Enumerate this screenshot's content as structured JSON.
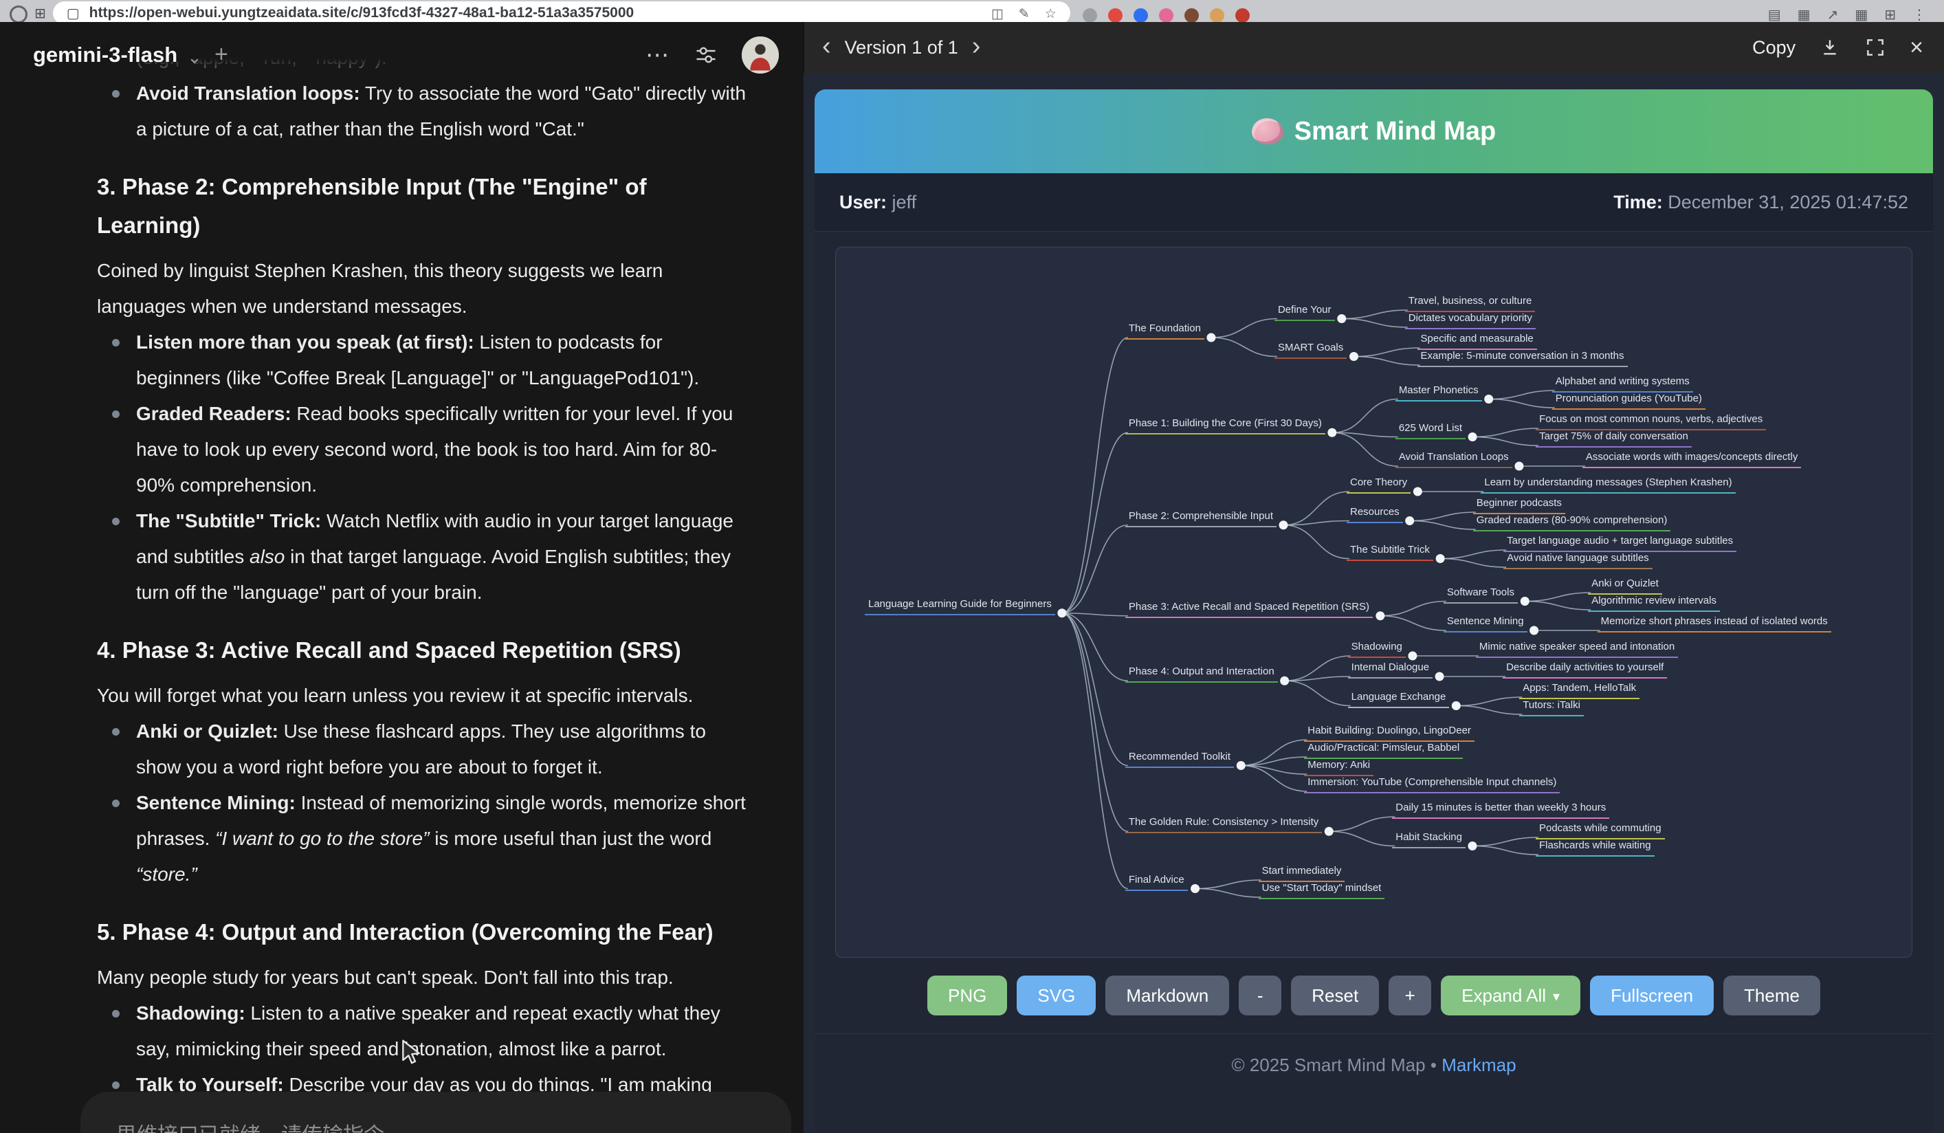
{
  "browser": {
    "url": "https://open-webui.yungtzeaidata.site/c/913fcd3f-4327-48a1-ba12-51a3a3575000",
    "pill_icons": [
      {
        "name": "reader-view-icon",
        "glyph": "◫"
      },
      {
        "name": "highlight-icon",
        "glyph": "✎"
      },
      {
        "name": "bookmark-star-icon",
        "glyph": "☆"
      }
    ],
    "extension_dots": [
      "#9aa0a6",
      "#e04a3f",
      "#2d6ff0",
      "#e2699a",
      "#7c4a32",
      "#d9a05b",
      "#c23b2e"
    ],
    "tray_icons": [
      {
        "name": "notifications-icon",
        "glyph": "▤"
      },
      {
        "name": "tab-overview-icon",
        "glyph": "▦"
      },
      {
        "name": "share-icon",
        "glyph": "↗"
      },
      {
        "name": "apps-grid-icon",
        "glyph": "▦"
      },
      {
        "name": "extensions-icon",
        "glyph": "⊞"
      },
      {
        "name": "more-menu-icon",
        "glyph": "⋮"
      }
    ]
  },
  "icons": {
    "model_chevron": "⌄",
    "new_chat": "+",
    "menu_dots": "⋯",
    "chevron_left": "‹",
    "chevron_right": "›",
    "close": "×",
    "caret_down": "▾",
    "footer_sep": "•"
  },
  "chat": {
    "model": "gemini-3-flash",
    "partial_line": "(e.g., \"apple,\" \"run,\" \"happy\").",
    "input_placeholder": "思维接口已就绪，请传输指令。",
    "blocks": [
      {
        "type": "bullet",
        "segments": [
          {
            "t": "Avoid Translation loops:",
            "b": true
          },
          {
            "t": " Try to associate the word \"Gato\" directly with a picture of a cat, rather than the English word \"Cat.\""
          }
        ]
      },
      {
        "type": "h3",
        "segments": [
          {
            "t": "3. Phase 2: Comprehensible Input (The \"Engine\" of Learning)"
          }
        ]
      },
      {
        "type": "p",
        "segments": [
          {
            "t": "Coined by linguist Stephen Krashen, this theory suggests we learn languages when we understand messages."
          }
        ]
      },
      {
        "type": "bullet",
        "segments": [
          {
            "t": "Listen more than you speak (at first):",
            "b": true
          },
          {
            "t": " Listen to podcasts for beginners (like \"Coffee Break [Language]\" or \"LanguagePod101\")."
          }
        ]
      },
      {
        "type": "bullet",
        "segments": [
          {
            "t": "Graded Readers:",
            "b": true
          },
          {
            "t": " Read books specifically written for your level. If you have to look up every second word, the book is too hard. Aim for 80-90% comprehension."
          }
        ]
      },
      {
        "type": "bullet",
        "segments": [
          {
            "t": "The \"Subtitle\" Trick:",
            "b": true
          },
          {
            "t": " Watch Netflix with audio in your target language and subtitles "
          },
          {
            "t": "also",
            "i": true
          },
          {
            "t": " in that target language. Avoid English subtitles; they turn off the \"language\" part of your brain."
          }
        ]
      },
      {
        "type": "h3",
        "segments": [
          {
            "t": "4. Phase 3: Active Recall and Spaced Repetition (SRS)"
          }
        ]
      },
      {
        "type": "p",
        "segments": [
          {
            "t": "You will forget what you learn unless you review it at specific intervals."
          }
        ]
      },
      {
        "type": "bullet",
        "segments": [
          {
            "t": "Anki or Quizlet:",
            "b": true
          },
          {
            "t": " Use these flashcard apps. They use algorithms to show you a word right before you are about to forget it."
          }
        ]
      },
      {
        "type": "bullet",
        "segments": [
          {
            "t": "Sentence Mining:",
            "b": true
          },
          {
            "t": " Instead of memorizing single words, memorize short phrases. "
          },
          {
            "t": "“I want to go to the store”",
            "i": true
          },
          {
            "t": " is more useful than just the word "
          },
          {
            "t": "“store.”",
            "i": true
          }
        ]
      },
      {
        "type": "h3",
        "segments": [
          {
            "t": "5. Phase 4: Output and Interaction (Overcoming the Fear)"
          }
        ]
      },
      {
        "type": "p",
        "segments": [
          {
            "t": "Many people study for years but can't speak. Don't fall into this trap."
          }
        ]
      },
      {
        "type": "bullet",
        "segments": [
          {
            "t": "Shadowing:",
            "b": true
          },
          {
            "t": " Listen to a native speaker and repeat exactly what they say, mimicking their speed and intonation, almost like a parrot."
          }
        ]
      },
      {
        "type": "bullet",
        "segments": [
          {
            "t": "Talk to Yourself:",
            "b": true
          },
          {
            "t": " Describe your day as you do things. \"I am making coffee now. The coffee is hot.\" This builds the muscle memory for"
          }
        ]
      }
    ]
  },
  "artifact": {
    "version_label": "Version 1 of 1",
    "copy_label": "Copy",
    "mindmap": {
      "title": "Smart Mind Map",
      "user_label": "User:",
      "user_value": "jeff",
      "time_label": "Time:",
      "time_value": "December 31, 2025 01:47:52",
      "footer_text": "© 2025 Smart Mind Map",
      "footer_sep": "•",
      "footer_link": "Markmap",
      "buttons": [
        {
          "name": "png-button",
          "label": "PNG",
          "variant": "green"
        },
        {
          "name": "svg-button",
          "label": "SVG",
          "variant": "blue"
        },
        {
          "name": "markdown-button",
          "label": "Markdown",
          "variant": "slate"
        },
        {
          "name": "zoom-out-button",
          "label": "-",
          "variant": "slate"
        },
        {
          "name": "reset-button",
          "label": "Reset",
          "variant": "slate"
        },
        {
          "name": "zoom-in-button",
          "label": "+",
          "variant": "slate"
        },
        {
          "name": "expand-all-button",
          "label": "Expand All",
          "variant": "green",
          "caret": "▾"
        },
        {
          "name": "fullscreen-button",
          "label": "Fullscreen",
          "variant": "blue"
        },
        {
          "name": "theme-button",
          "label": "Theme",
          "variant": "slate"
        }
      ],
      "tree": {
        "label": "Language Learning Guide for Beginners",
        "color": "#567fc9",
        "children": [
          {
            "label": "The Foundation",
            "color": "#d2823e",
            "children": [
              {
                "label": "Define Your",
                "color": "#4f9e4f",
                "children": [
                  {
                    "label": "Travel, business, or culture",
                    "color": "#c64a3f"
                  },
                  {
                    "label": "Dictates vocabulary priority",
                    "color": "#8f74cb"
                  }
                ]
              },
              {
                "label": "SMART Goals",
                "color": "#a2544a",
                "children": [
                  {
                    "label": "Specific and measurable",
                    "color": "#d678c4"
                  },
                  {
                    "label": "Example: 5-minute conversation in 3 months",
                    "color": "#9aa3ae"
                  }
                ]
              }
            ]
          },
          {
            "label": "Phase 1: Building the Core (First 30 Days)",
            "color": "#b3b84b",
            "children": [
              {
                "label": "Master Phonetics",
                "color": "#4ab6c6",
                "children": [
                  {
                    "label": "Alphabet and writing systems",
                    "color": "#5585d0"
                  },
                  {
                    "label": "Pronunciation guides (YouTube)",
                    "color": "#d2823e"
                  }
                ]
              },
              {
                "label": "625 Word List",
                "color": "#4f9e4f",
                "children": [
                  {
                    "label": "Focus on most common nouns, verbs, adjectives",
                    "color": "#b35046"
                  },
                  {
                    "label": "Target 75% of daily conversation",
                    "color": "#8f74cb"
                  }
                ]
              },
              {
                "label": "Avoid Translation Loops",
                "color": "#8e5f43",
                "children": [
                  {
                    "label": "Associate words with images/concepts directly",
                    "color": "#d678c4"
                  }
                ]
              }
            ]
          },
          {
            "label": "Phase 2: Comprehensible Input",
            "color": "#98a1ad",
            "children": [
              {
                "label": "Core Theory",
                "color": "#c4c44f",
                "children": [
                  {
                    "label": "Learn by understanding messages (Stephen Krashen)",
                    "color": "#4ab6c6"
                  }
                ]
              },
              {
                "label": "Resources",
                "color": "#5585d0",
                "children": [
                  {
                    "label": "Beginner podcasts",
                    "color": "#d2823e"
                  },
                  {
                    "label": "Graded readers (80-90% comprehension)",
                    "color": "#57a65a"
                  }
                ]
              },
              {
                "label": "The Subtitle Trick",
                "color": "#c64a3f",
                "children": [
                  {
                    "label": "Target language audio + target language subtitles",
                    "color": "#8f74cb"
                  },
                  {
                    "label": "Avoid native language subtitles",
                    "color": "#9b7a55"
                  }
                ]
              }
            ]
          },
          {
            "label": "Phase 3: Active Recall and Spaced Repetition (SRS)",
            "color": "#c977bb",
            "children": [
              {
                "label": "Software Tools",
                "color": "#98a1ad",
                "children": [
                  {
                    "label": "Anki or Quizlet",
                    "color": "#c4c44f"
                  },
                  {
                    "label": "Algorithmic review intervals",
                    "color": "#4ab6c6"
                  }
                ]
              },
              {
                "label": "Sentence Mining",
                "color": "#5585d0",
                "children": [
                  {
                    "label": "Memorize short phrases instead of isolated words",
                    "color": "#d2823e"
                  }
                ]
              }
            ]
          },
          {
            "label": "Phase 4: Output and Interaction",
            "color": "#57a65a",
            "children": [
              {
                "label": "Shadowing",
                "color": "#c64a3f",
                "children": [
                  {
                    "label": "Mimic native speaker speed and intonation",
                    "color": "#8f74cb"
                  }
                ]
              },
              {
                "label": "Internal Dialogue",
                "color": "#98a1ad",
                "children": [
                  {
                    "label": "Describe daily activities to yourself",
                    "color": "#d678c4"
                  }
                ]
              },
              {
                "label": "Language Exchange",
                "color": "#aab3bf",
                "children": [
                  {
                    "label": "Apps: Tandem, HelloTalk",
                    "color": "#c4c44f"
                  },
                  {
                    "label": "Tutors: iTalki",
                    "color": "#4ab6c6"
                  }
                ]
              }
            ]
          },
          {
            "label": "Recommended Toolkit",
            "color": "#5585d0",
            "children": [
              {
                "label": "Habit Building: Duolingo, LingoDeer",
                "color": "#d2823e"
              },
              {
                "label": "Audio/Practical: Pimsleur, Babbel",
                "color": "#57a65a"
              },
              {
                "label": "Memory: Anki",
                "color": "#c64a3f"
              },
              {
                "label": "Immersion: YouTube (Comprehensible Input channels)",
                "color": "#8f74cb"
              }
            ]
          },
          {
            "label": "The Golden Rule: Consistency > Intensity",
            "color": "#96684a",
            "children": [
              {
                "label": "Daily 15 minutes is better than weekly 3 hours",
                "color": "#d678c4"
              },
              {
                "label": "Habit Stacking",
                "color": "#98a1ad",
                "children": [
                  {
                    "label": "Podcasts while commuting",
                    "color": "#c4c44f"
                  },
                  {
                    "label": "Flashcards while waiting",
                    "color": "#4ab6c6"
                  }
                ]
              }
            ]
          },
          {
            "label": "Final Advice",
            "color": "#5585d0",
            "children": [
              {
                "label": "Start immediately",
                "color": "#d2823e"
              },
              {
                "label": "Use \"Start Today\" mindset",
                "color": "#57a65a"
              }
            ]
          }
        ]
      }
    }
  }
}
